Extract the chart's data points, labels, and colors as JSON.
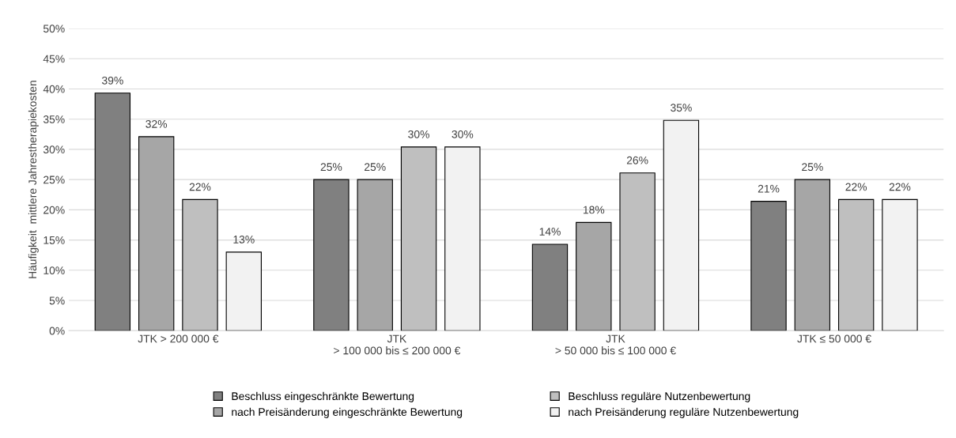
{
  "chart_data": {
    "type": "bar",
    "ylabel": "Häufigkeit  mittlere Jahrestherapiekosten",
    "categories": [
      "JTK > 200 000 €",
      "JTK\n> 100 000 bis ≤ 200 000 €",
      "JTK\n> 50 000 bis ≤ 100 000 €",
      "JTK ≤ 50 000 €"
    ],
    "series": [
      {
        "name": "Beschluss eingeschränkte Bewertung",
        "color": "#808080",
        "values": [
          39.3,
          25.0,
          14.3,
          21.4
        ],
        "value_labels": [
          "39%",
          "25%",
          "14%",
          "21%"
        ]
      },
      {
        "name": "nach Preisänderung eingeschränkte Bewertung",
        "color": "#a6a6a6",
        "values": [
          32.1,
          25.0,
          17.9,
          25.0
        ],
        "value_labels": [
          "32%",
          "25%",
          "18%",
          "25%"
        ]
      },
      {
        "name": "Beschluss reguläre Nutzenbewertung",
        "color": "#bfbfbf",
        "values": [
          21.7,
          30.4,
          26.1,
          21.7
        ],
        "value_labels": [
          "22%",
          "30%",
          "26%",
          "22%"
        ]
      },
      {
        "name": "nach Preisänderung reguläre Nutzenbewertung",
        "color": "#f2f2f2",
        "values": [
          13.0,
          30.4,
          34.8,
          21.7
        ],
        "value_labels": [
          "13%",
          "30%",
          "35%",
          "22%"
        ]
      }
    ],
    "ylim": [
      0,
      50
    ],
    "yticks": [
      {
        "value": 0,
        "label": "0%"
      },
      {
        "value": 5,
        "label": "5%"
      },
      {
        "value": 10,
        "label": "10%"
      },
      {
        "value": 15,
        "label": "15%"
      },
      {
        "value": 20,
        "label": "20%"
      },
      {
        "value": 25,
        "label": "25%"
      },
      {
        "value": 30,
        "label": "30%"
      },
      {
        "value": 35,
        "label": "35%"
      },
      {
        "value": 40,
        "label": "40%"
      },
      {
        "value": 45,
        "label": "45%"
      },
      {
        "value": 50,
        "label": "50%"
      }
    ],
    "grid": "y",
    "legend": "bottom"
  }
}
